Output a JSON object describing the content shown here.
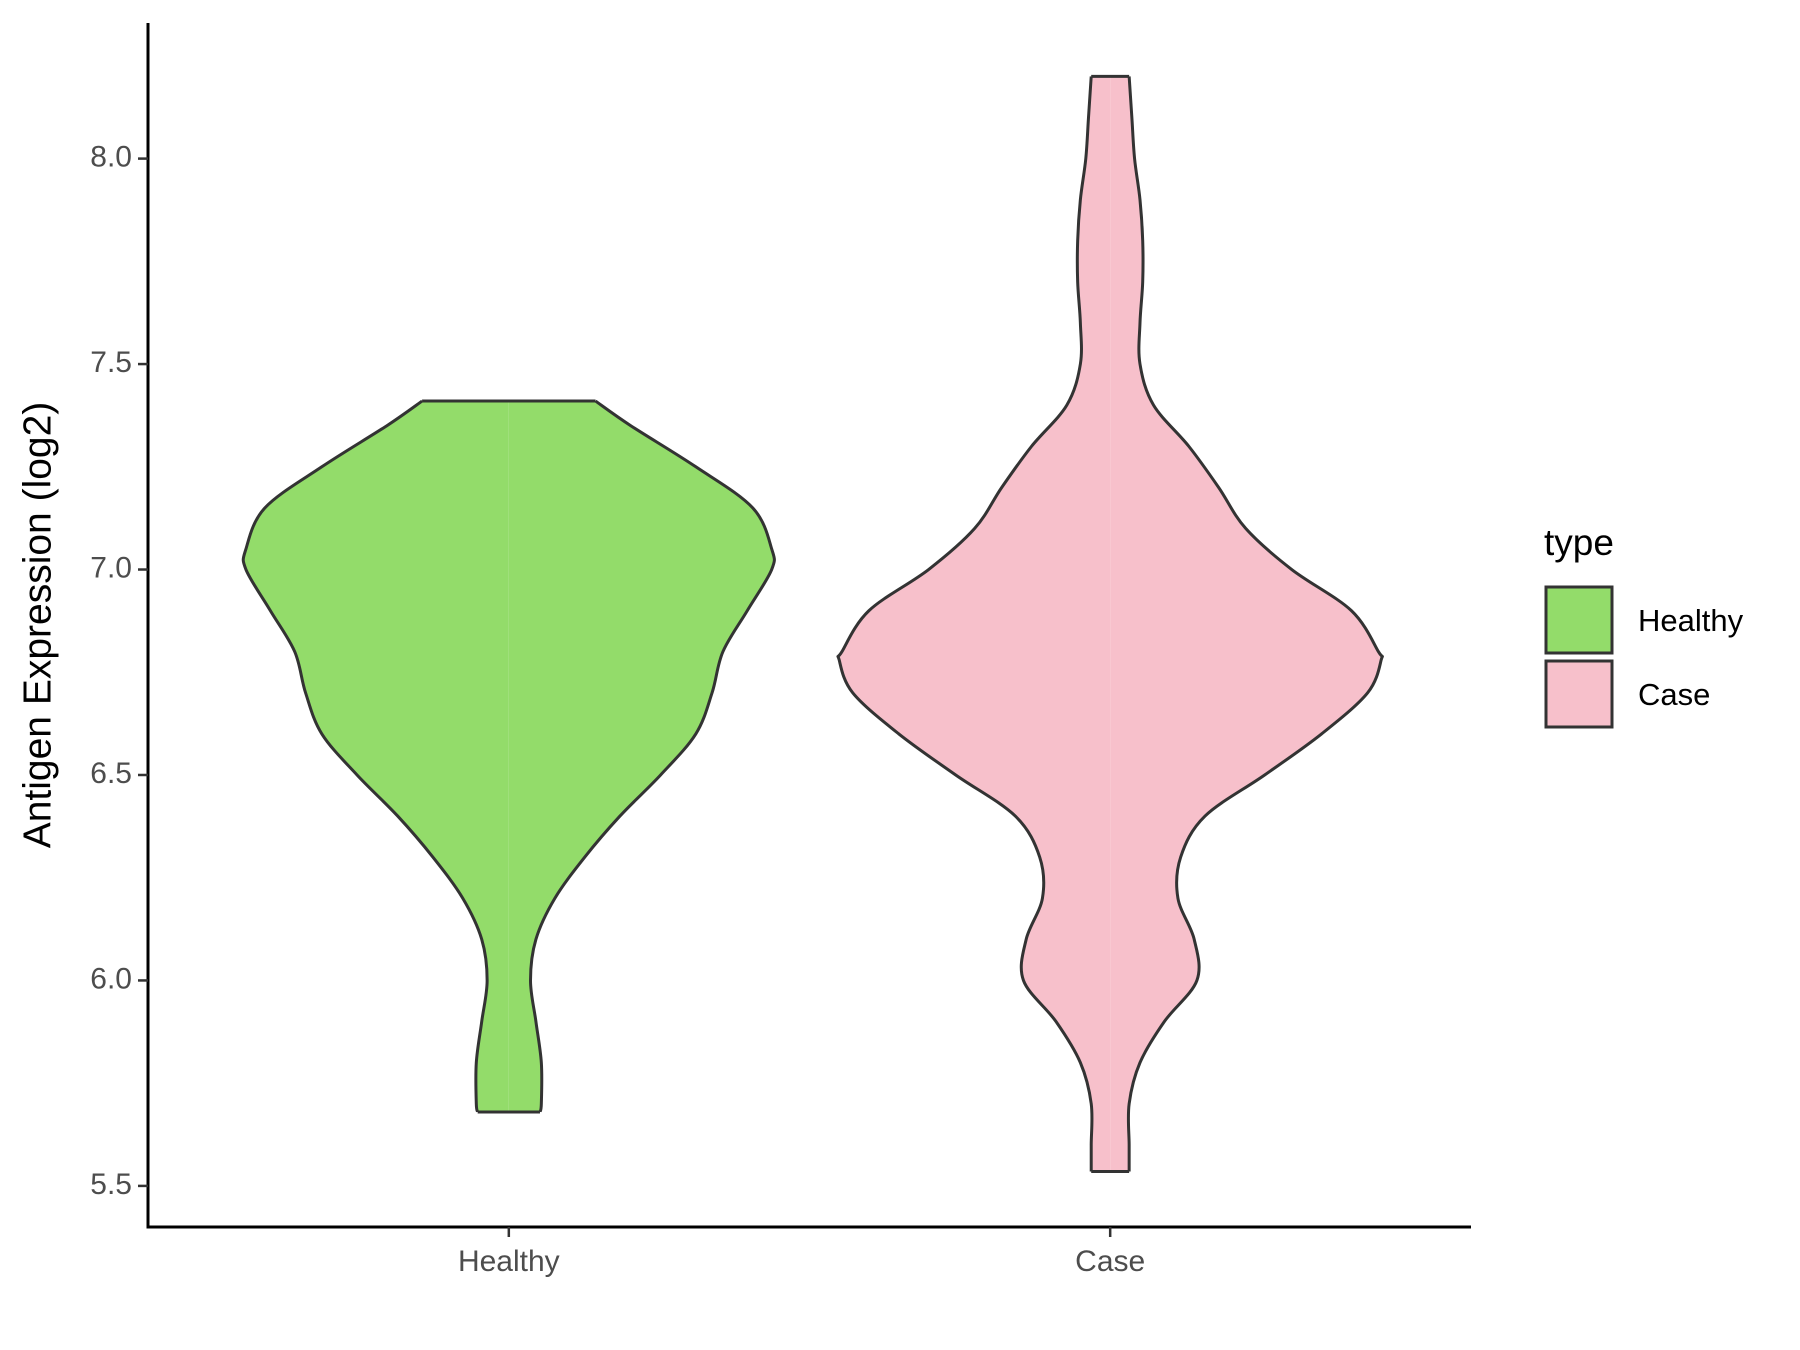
{
  "chart_data": {
    "type": "violin",
    "y_label": "Antigen Expression (log2)",
    "categories": [
      "Healthy",
      "Case"
    ],
    "legend_title": "type",
    "legend_position": "right",
    "ylim": [
      5.4,
      8.33
    ],
    "yticks": [
      5.5,
      {
        "value": 6,
        "label": "6.0"
      },
      6.5,
      {
        "value": 7,
        "label": "7.0"
      },
      7.5,
      {
        "value": 8,
        "label": "8.0"
      }
    ],
    "series": [
      {
        "name": "Healthy",
        "color": "#93dc6a",
        "y": [
          5.68,
          5.7,
          5.8,
          5.9,
          6.0,
          6.1,
          6.2,
          6.3,
          6.4,
          6.5,
          6.6,
          6.7,
          6.8,
          6.9,
          7.0,
          7.05,
          7.15,
          7.25,
          7.35,
          7.41
        ],
        "density": [
          0.115,
          0.12,
          0.12,
          0.1,
          0.08,
          0.1,
          0.17,
          0.28,
          0.41,
          0.56,
          0.69,
          0.75,
          0.79,
          0.88,
          0.97,
          0.97,
          0.9,
          0.69,
          0.45,
          0.32
        ]
      },
      {
        "name": "Case",
        "color": "#f7c0cb",
        "y": [
          5.535,
          5.6,
          5.7,
          5.8,
          5.9,
          6.0,
          6.1,
          6.2,
          6.3,
          6.4,
          6.5,
          6.6,
          6.7,
          6.78,
          6.8,
          6.9,
          7.0,
          7.1,
          7.2,
          7.3,
          7.4,
          7.5,
          7.6,
          7.7,
          7.8,
          7.9,
          8.0,
          8.1,
          8.2
        ],
        "density": [
          0.07,
          0.07,
          0.07,
          0.11,
          0.2,
          0.32,
          0.31,
          0.25,
          0.26,
          0.35,
          0.57,
          0.78,
          0.95,
          1.0,
          0.99,
          0.89,
          0.67,
          0.5,
          0.4,
          0.29,
          0.16,
          0.11,
          0.11,
          0.12,
          0.12,
          0.11,
          0.09,
          0.08,
          0.07
        ]
      }
    ]
  }
}
